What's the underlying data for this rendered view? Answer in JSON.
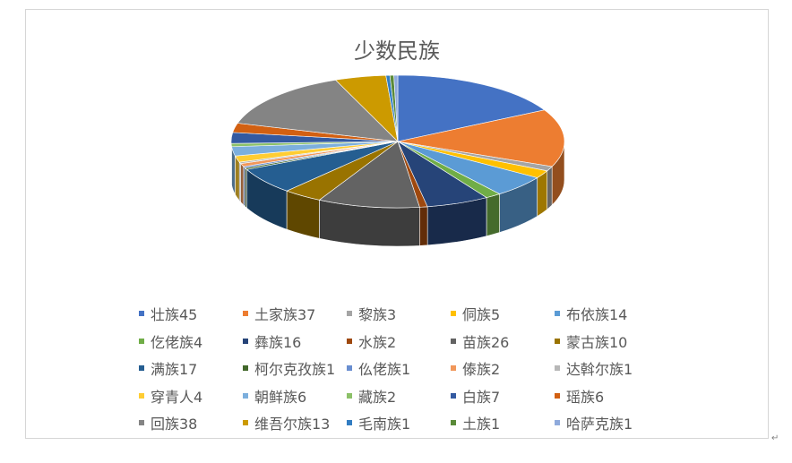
{
  "chart_data": {
    "type": "pie",
    "style": "3d",
    "title": "少数民族",
    "legend_position": "bottom",
    "categories": [
      "壮族",
      "土家族",
      "黎族",
      "侗族",
      "布依族",
      "仡佬族",
      "彝族",
      "水族",
      "苗族",
      "蒙古族",
      "满族",
      "柯尔克孜族",
      "仫佬族",
      "傣族",
      "达斡尔族",
      "穿青人",
      "朝鲜族",
      "藏族",
      "白族",
      "瑶族",
      "回族",
      "维吾尔族",
      "毛南族",
      "土族",
      "哈萨克族"
    ],
    "values": [
      45,
      37,
      3,
      5,
      14,
      4,
      16,
      2,
      26,
      10,
      17,
      1,
      1,
      2,
      1,
      4,
      6,
      2,
      7,
      6,
      38,
      13,
      1,
      1,
      1
    ],
    "legend_labels": [
      "壮族45",
      "土家族37",
      "黎族3",
      "侗族5",
      "布依族14",
      "仡佬族4",
      "彝族16",
      "水族2",
      "苗族26",
      "蒙古族10",
      "满族17",
      "柯尔克孜族1",
      "仫佬族1",
      "傣族2",
      "达斡尔族1",
      "穿青人4",
      "朝鲜族6",
      "藏族2",
      "白族7",
      "瑶族6",
      "回族38",
      "维吾尔族13",
      "毛南族1",
      "土族1",
      "哈萨克族1"
    ],
    "colors": [
      "#4472C4",
      "#ED7D31",
      "#A5A5A5",
      "#FFC000",
      "#5B9BD5",
      "#70AD47",
      "#264478",
      "#9E480E",
      "#636363",
      "#997300",
      "#255E91",
      "#43682B",
      "#698ED0",
      "#F1975A",
      "#B7B7B7",
      "#FFCD33",
      "#7CAFDD",
      "#8CC168",
      "#335AA1",
      "#D26012",
      "#848484",
      "#CC9A00",
      "#327DC2",
      "#5A8A39",
      "#8FAADC"
    ]
  },
  "page_mark": "↵"
}
